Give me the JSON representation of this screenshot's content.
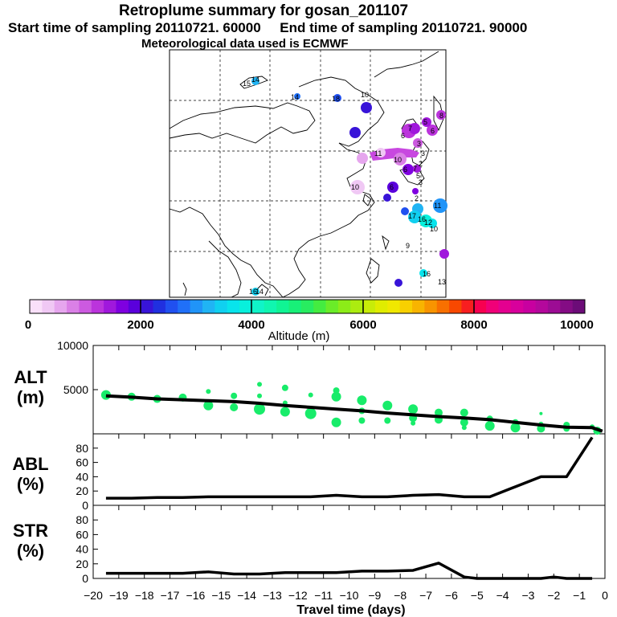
{
  "header": {
    "title": "Retroplume summary for gosan_201107",
    "subtitle": "Start time of sampling 20110721. 60000     End time of sampling 20110721. 90000",
    "met": "Meteorological data used is ECMWF"
  },
  "colorbar": {
    "label": "Altitude (m)",
    "ticks": [
      "0",
      "2000",
      "4000",
      "6000",
      "8000",
      "10000"
    ],
    "colors": [
      "#fae0fa",
      "#f0c8f4",
      "#e6a6ee",
      "#da80e6",
      "#cc5ae0",
      "#bb34dc",
      "#a018dc",
      "#7f00e0",
      "#5a00dc",
      "#3814d8",
      "#2030e0",
      "#2050f0",
      "#2070f8",
      "#2094f8",
      "#20b4f4",
      "#10d0f0",
      "#08e4ec",
      "#08f0dc",
      "#10f4c8",
      "#10f6b0",
      "#10f494",
      "#18f078",
      "#28ec60",
      "#44ec40",
      "#6aec28",
      "#8cec18",
      "#acec10",
      "#c8ec08",
      "#e0ec00",
      "#f0e800",
      "#f8d000",
      "#f8b400",
      "#f89400",
      "#f87000",
      "#f84800",
      "#f81e20",
      "#f80050",
      "#f00078",
      "#e40090",
      "#d8009c",
      "#c800a0",
      "#b4089c",
      "#9c0c94",
      "#840c84",
      "#6c0c78"
    ]
  },
  "map": {
    "labels": [
      "15",
      "14",
      "14",
      "18",
      "10",
      "7",
      "6",
      "6",
      "5",
      "3",
      "3",
      "8",
      "2",
      "11",
      "10",
      "7",
      "6",
      "2",
      "5",
      "3",
      "10",
      "6",
      "17",
      "16",
      "11",
      "12",
      "10",
      "9",
      "16",
      "13",
      "16",
      "14"
    ]
  },
  "chart_data": [
    {
      "type": "scatter",
      "id": "alt",
      "title": "ALT (m)",
      "ylabel_line1": "ALT",
      "ylabel_line2": "(m)",
      "ylim": [
        0,
        10000
      ],
      "yticks": [
        0,
        5000,
        10000
      ],
      "ytick_labels": [
        "",
        "5000",
        "10000"
      ],
      "xlim": [
        -20,
        0
      ],
      "line": {
        "x": [
          -19.5,
          -18.5,
          -17.5,
          -16.5,
          -15.5,
          -14.5,
          -13.5,
          -12.5,
          -11.5,
          -10.5,
          -9.5,
          -8.5,
          -7.5,
          -6.5,
          -5.5,
          -4.5,
          -3.5,
          -2.5,
          -1.5,
          -0.5,
          -0.1
        ],
        "y": [
          4300,
          4150,
          3950,
          3850,
          3750,
          3650,
          3450,
          3200,
          3000,
          2800,
          2600,
          2350,
          2150,
          1950,
          1800,
          1600,
          1300,
          1000,
          750,
          700,
          300
        ]
      },
      "points": [
        {
          "x": -19.5,
          "y": 4400,
          "s": 6
        },
        {
          "x": -18.5,
          "y": 4200,
          "s": 5
        },
        {
          "x": -17.5,
          "y": 3950,
          "s": 5
        },
        {
          "x": -16.5,
          "y": 4100,
          "s": 5
        },
        {
          "x": -15.5,
          "y": 4800,
          "s": 3
        },
        {
          "x": -15.5,
          "y": 3200,
          "s": 6
        },
        {
          "x": -14.5,
          "y": 4300,
          "s": 4
        },
        {
          "x": -14.5,
          "y": 3000,
          "s": 5
        },
        {
          "x": -13.5,
          "y": 5600,
          "s": 3
        },
        {
          "x": -13.5,
          "y": 4300,
          "s": 3
        },
        {
          "x": -13.5,
          "y": 2800,
          "s": 7
        },
        {
          "x": -12.5,
          "y": 5200,
          "s": 4
        },
        {
          "x": -12.5,
          "y": 3500,
          "s": 3
        },
        {
          "x": -12.5,
          "y": 2500,
          "s": 6
        },
        {
          "x": -11.5,
          "y": 4400,
          "s": 3
        },
        {
          "x": -11.5,
          "y": 2300,
          "s": 7
        },
        {
          "x": -10.5,
          "y": 4900,
          "s": 4
        },
        {
          "x": -10.5,
          "y": 4200,
          "s": 6
        },
        {
          "x": -10.5,
          "y": 1300,
          "s": 6
        },
        {
          "x": -9.5,
          "y": 3800,
          "s": 6
        },
        {
          "x": -9.5,
          "y": 2600,
          "s": 4
        },
        {
          "x": -9.5,
          "y": 1500,
          "s": 4
        },
        {
          "x": -8.5,
          "y": 3200,
          "s": 6
        },
        {
          "x": -8.5,
          "y": 1500,
          "s": 4
        },
        {
          "x": -7.5,
          "y": 2800,
          "s": 6
        },
        {
          "x": -7.5,
          "y": 1800,
          "s": 5
        },
        {
          "x": -7.5,
          "y": 1200,
          "s": 3
        },
        {
          "x": -6.5,
          "y": 2400,
          "s": 5
        },
        {
          "x": -6.5,
          "y": 1600,
          "s": 5
        },
        {
          "x": -5.5,
          "y": 2400,
          "s": 5
        },
        {
          "x": -5.5,
          "y": 1300,
          "s": 5
        },
        {
          "x": -5.5,
          "y": 700,
          "s": 3
        },
        {
          "x": -4.5,
          "y": 1700,
          "s": 4
        },
        {
          "x": -4.5,
          "y": 900,
          "s": 6
        },
        {
          "x": -3.5,
          "y": 1300,
          "s": 4
        },
        {
          "x": -3.5,
          "y": 700,
          "s": 6
        },
        {
          "x": -2.5,
          "y": 2300,
          "s": 2
        },
        {
          "x": -2.5,
          "y": 1100,
          "s": 3
        },
        {
          "x": -2.5,
          "y": 600,
          "s": 5
        },
        {
          "x": -1.5,
          "y": 1000,
          "s": 4
        },
        {
          "x": -1.5,
          "y": 600,
          "s": 4
        },
        {
          "x": -0.5,
          "y": 800,
          "s": 3
        },
        {
          "x": -0.3,
          "y": 350,
          "s": 5
        }
      ]
    },
    {
      "type": "line",
      "id": "abl",
      "title": "ABL (%)",
      "ylabel_line1": "ABL",
      "ylabel_line2": "(%)",
      "ylim": [
        0,
        100
      ],
      "yticks": [
        0,
        20,
        40,
        60,
        80
      ],
      "ytick_labels": [
        "0",
        "20",
        "40",
        "60",
        "80"
      ],
      "xlim": [
        -20,
        0
      ],
      "x": [
        -19.5,
        -18.5,
        -17.5,
        -16.5,
        -15.5,
        -14.5,
        -13.5,
        -12.5,
        -11.5,
        -10.5,
        -9.5,
        -8.5,
        -7.5,
        -6.5,
        -5.5,
        -4.5,
        -3.5,
        -2.5,
        -1.5,
        -0.5
      ],
      "y": [
        10,
        10,
        11,
        11,
        12,
        12,
        12,
        12,
        12,
        14,
        12,
        12,
        14,
        15,
        12,
        12,
        26,
        40,
        40,
        95
      ]
    },
    {
      "type": "line",
      "id": "str",
      "title": "STR (%)",
      "ylabel_line1": "STR",
      "ylabel_line2": "(%)",
      "ylim": [
        0,
        100
      ],
      "yticks": [
        0,
        20,
        40,
        60,
        80
      ],
      "ytick_labels": [
        "0",
        "20",
        "40",
        "60",
        "80"
      ],
      "xlim": [
        -20,
        0
      ],
      "xlabel": "Travel time (days)",
      "xticks": [
        -20,
        -19,
        -18,
        -17,
        -16,
        -15,
        -14,
        -13,
        -12,
        -11,
        -10,
        -9,
        -8,
        -7,
        -6,
        -5,
        -4,
        -3,
        -2,
        -1,
        0
      ],
      "x": [
        -19.5,
        -18.5,
        -17.5,
        -16.5,
        -15.5,
        -14.5,
        -13.5,
        -12.5,
        -11.5,
        -10.5,
        -9.5,
        -8.5,
        -7.5,
        -6.5,
        -5.5,
        -5.0,
        -4.5,
        -3.5,
        -2.5,
        -2.0,
        -1.5,
        -0.5
      ],
      "y": [
        7,
        7,
        7,
        7,
        9,
        6,
        6,
        8,
        8,
        8,
        10,
        10,
        11,
        21,
        2,
        0,
        0,
        0,
        0,
        2,
        0,
        0
      ]
    }
  ]
}
